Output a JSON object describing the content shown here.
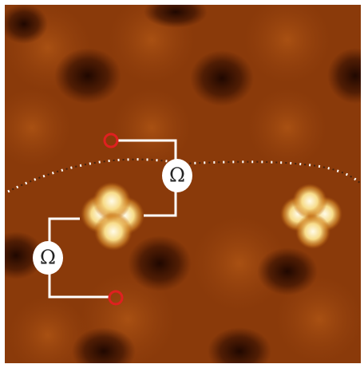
{
  "symbols": [
    {
      "label": "Ω"
    },
    {
      "label": "Ω"
    }
  ]
}
